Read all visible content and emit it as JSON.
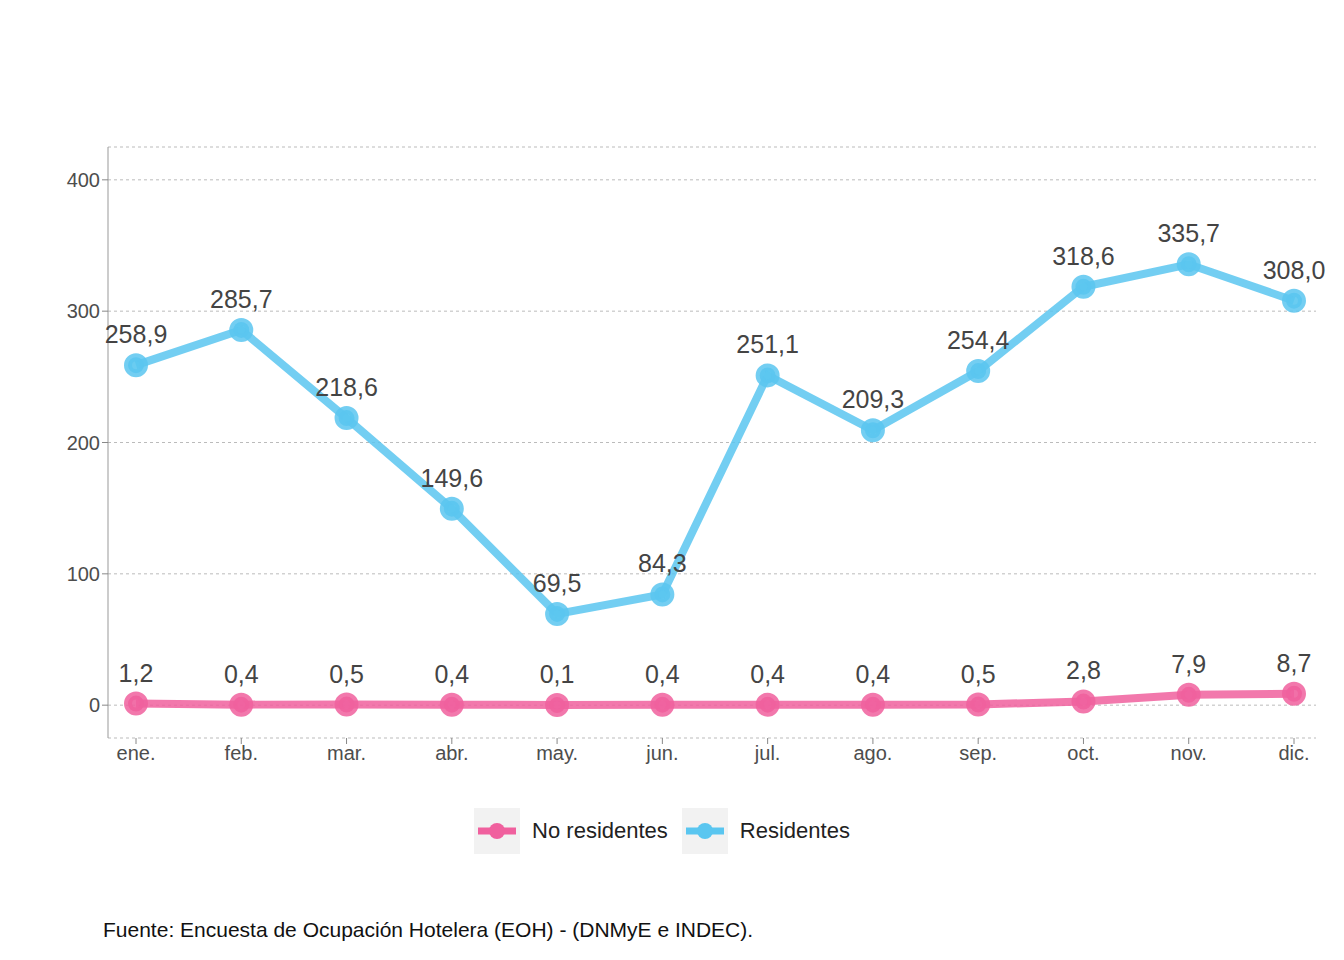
{
  "chart_data": {
    "type": "line",
    "categories": [
      "ene.",
      "feb.",
      "mar.",
      "abr.",
      "may.",
      "jun.",
      "jul.",
      "ago.",
      "sep.",
      "oct.",
      "nov.",
      "dic."
    ],
    "series": [
      {
        "name": "No residentes",
        "color": "#F0609E",
        "values": [
          1.2,
          0.4,
          0.5,
          0.4,
          0.1,
          0.4,
          0.4,
          0.4,
          0.5,
          2.8,
          7.9,
          8.7
        ],
        "value_labels": [
          "1,2",
          "0,4",
          "0,5",
          "0,4",
          "0,1",
          "0,4",
          "0,4",
          "0,4",
          "0,5",
          "2,8",
          "7,9",
          "8,7"
        ],
        "marker": "circle"
      },
      {
        "name": "Residentes",
        "color": "#5AC6F0",
        "values": [
          258.9,
          285.7,
          218.6,
          149.6,
          69.5,
          84.3,
          251.1,
          209.3,
          254.4,
          318.6,
          335.7,
          308.0
        ],
        "value_labels": [
          "258,9",
          "285,7",
          "218,6",
          "149,6",
          "69,5",
          "84,3",
          "251,1",
          "209,3",
          "254,4",
          "318,6",
          "335,7",
          "308,0"
        ],
        "marker": "circle"
      }
    ],
    "ylim": [
      -25,
      425
    ],
    "yticks": [
      0,
      100,
      200,
      300,
      400
    ],
    "grid": true,
    "legend": "bottom",
    "data_labels": true,
    "annotations": [
      "Fuente: Encuesta de Ocupación Hotelera (EOH) - (DNMyE e INDEC)."
    ]
  }
}
